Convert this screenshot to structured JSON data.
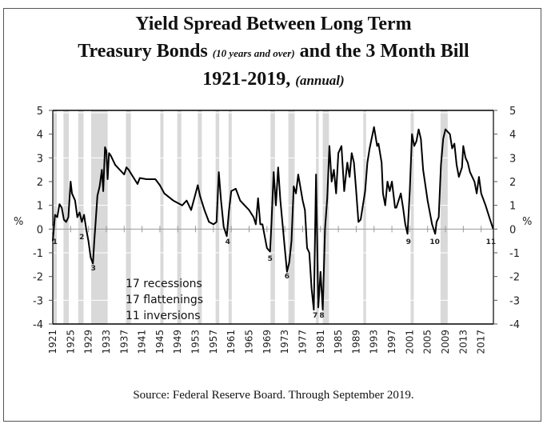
{
  "chart_data": {
    "type": "line",
    "title": {
      "line1": "Yield Spread Between Long Term",
      "line2_main": "Treasury Bonds",
      "line2_note": "(10 years and over)",
      "line2_tail": "and the 3 Month Bill",
      "line3_main": "1921-2019,",
      "line3_note": "(annual)"
    },
    "source": "Source: Federal Reserve Board. Through September 2019.",
    "xlabel": "",
    "ylabel": "%",
    "ylabel_right": "%",
    "xlim": [
      1921,
      2019.75
    ],
    "ylim": [
      -4,
      5
    ],
    "y_ticks": [
      "5",
      "4",
      "3",
      "2",
      "1",
      "0",
      "-1",
      "-2",
      "-3",
      "-4"
    ],
    "y_tick_values": [
      5,
      4,
      3,
      2,
      1,
      0,
      -1,
      -2,
      -3,
      -4
    ],
    "x_ticks": [
      "1921",
      "1925",
      "1929",
      "1933",
      "1937",
      "1941",
      "1945",
      "1949",
      "1953",
      "1957",
      "1961",
      "1965",
      "1969",
      "1973",
      "1977",
      "1981",
      "1985",
      "1989",
      "1993",
      "1997",
      "2001",
      "2005",
      "2009",
      "2013",
      "2017"
    ],
    "x_tick_values": [
      1921,
      1925,
      1929,
      1933,
      1937,
      1941,
      1945,
      1949,
      1953,
      1957,
      1961,
      1965,
      1969,
      1973,
      1977,
      1981,
      1985,
      1989,
      1993,
      1997,
      2001,
      2005,
      2009,
      2013,
      2017
    ],
    "grid": false,
    "recession_color": "#d9d9d9",
    "line_color": "#000000",
    "recessions": [
      [
        1921.0,
        1921.9
      ],
      [
        1923.4,
        1924.6
      ],
      [
        1926.7,
        1927.9
      ],
      [
        1929.6,
        1933.3
      ],
      [
        1937.4,
        1938.5
      ],
      [
        1945.1,
        1945.8
      ],
      [
        1948.9,
        1949.8
      ],
      [
        1953.5,
        1954.4
      ],
      [
        1957.5,
        1958.3
      ],
      [
        1960.4,
        1961.1
      ],
      [
        1969.8,
        1970.8
      ],
      [
        1973.8,
        1975.2
      ],
      [
        1980.0,
        1980.6
      ],
      [
        1981.5,
        1982.9
      ],
      [
        1990.6,
        1991.2
      ],
      [
        2001.2,
        2001.9
      ],
      [
        2007.9,
        2009.5
      ]
    ],
    "annotations": [
      {
        "label": "1",
        "x": 1921.5,
        "y": -0.5
      },
      {
        "label": "2",
        "x": 1927.5,
        "y": -0.3
      },
      {
        "label": "3",
        "x": 1930.1,
        "y": -1.6
      },
      {
        "label": "4",
        "x": 1960.2,
        "y": -0.5
      },
      {
        "label": "5",
        "x": 1969.7,
        "y": -1.2
      },
      {
        "label": "6",
        "x": 1973.5,
        "y": -1.95
      },
      {
        "label": "7",
        "x": 1979.8,
        "y": -3.6
      },
      {
        "label": "8",
        "x": 1981.3,
        "y": -3.6
      },
      {
        "label": "9",
        "x": 2000.7,
        "y": -0.5
      },
      {
        "label": "10",
        "x": 2006.6,
        "y": -0.5
      },
      {
        "label": "11",
        "x": 2019.2,
        "y": -0.5
      }
    ],
    "notes": [
      "17 recessions",
      "17 flattenings",
      "11 inversions"
    ],
    "series": [
      {
        "name": "Yield spread",
        "x": [
          1921,
          1921.5,
          1922,
          1922.5,
          1923,
          1923.5,
          1924,
          1924.5,
          1925,
          1925.3,
          1926,
          1926.5,
          1927,
          1927.5,
          1928,
          1928.5,
          1929,
          1929.5,
          1930,
          1930.3,
          1930.6,
          1931,
          1931.5,
          1932,
          1932.3,
          1932.7,
          1933,
          1933.3,
          1933.6,
          1934,
          1935,
          1936,
          1937,
          1937.5,
          1938,
          1939,
          1940,
          1940.5,
          1942,
          1944,
          1945,
          1946,
          1948,
          1950,
          1951,
          1952,
          1953,
          1953.5,
          1954,
          1955,
          1956,
          1957,
          1957.7,
          1958.2,
          1958.7,
          1959.3,
          1960,
          1960.5,
          1961,
          1962,
          1963,
          1964,
          1965,
          1966,
          1966.5,
          1967,
          1967.5,
          1968,
          1969,
          1969.7,
          1970,
          1970.5,
          1971,
          1971.5,
          1972,
          1973,
          1973.5,
          1974,
          1974.5,
          1975,
          1975.5,
          1976,
          1977,
          1977.5,
          1978,
          1978.5,
          1979,
          1979.5,
          1980,
          1980.5,
          1981,
          1981.5,
          1982,
          1982.5,
          1983,
          1983.5,
          1984,
          1984.5,
          1985,
          1985.7,
          1986.3,
          1987,
          1987.5,
          1988,
          1988.5,
          1989,
          1989.5,
          1990,
          1991,
          1991.5,
          1992,
          1993,
          1993.7,
          1994,
          1994.7,
          1995,
          1995.5,
          1996,
          1996.5,
          1997,
          1997.7,
          1998,
          1999,
          1999.5,
          2000,
          2000.5,
          2001,
          2001.5,
          2002,
          2002.5,
          2003,
          2003.5,
          2004,
          2005,
          2006,
          2006.7,
          2007,
          2007.5,
          2008,
          2008.5,
          2009,
          2010,
          2010.5,
          2011,
          2011.5,
          2012,
          2012.7,
          2013,
          2013.5,
          2014,
          2014.5,
          2015,
          2015.5,
          2016,
          2016.5,
          2017,
          2018,
          2019,
          2019.7
        ],
        "values": [
          -0.5,
          0.6,
          0.5,
          1.05,
          0.9,
          0.4,
          0.3,
          0.5,
          2.0,
          1.5,
          1.2,
          0.5,
          0.7,
          0.3,
          0.6,
          0.0,
          -0.5,
          -1.2,
          -1.45,
          -0.5,
          0.3,
          1.4,
          1.8,
          2.5,
          1.6,
          3.45,
          3.3,
          2.1,
          3.2,
          3.1,
          2.7,
          2.5,
          2.3,
          2.6,
          2.5,
          2.2,
          1.9,
          2.15,
          2.1,
          2.1,
          1.85,
          1.5,
          1.2,
          1.0,
          1.2,
          0.8,
          1.5,
          1.85,
          1.4,
          0.8,
          0.3,
          0.2,
          0.3,
          2.4,
          1.2,
          0.1,
          -0.3,
          0.8,
          1.6,
          1.7,
          1.2,
          1.0,
          0.8,
          0.5,
          0.2,
          1.3,
          0.2,
          0.2,
          -0.8,
          -0.95,
          0.2,
          2.4,
          1.0,
          2.6,
          1.2,
          -0.8,
          -1.8,
          -1.4,
          -0.5,
          1.8,
          1.5,
          2.3,
          1.2,
          0.8,
          -0.8,
          -1.0,
          -2.5,
          -3.4,
          2.3,
          -3.3,
          -1.8,
          -3.4,
          0.0,
          1.3,
          3.5,
          2.0,
          2.5,
          1.5,
          3.2,
          3.5,
          1.6,
          2.8,
          2.2,
          3.2,
          2.8,
          1.6,
          0.3,
          0.4,
          1.6,
          2.8,
          3.4,
          4.3,
          3.5,
          3.6,
          2.8,
          1.5,
          1.0,
          2.0,
          1.6,
          2.0,
          0.9,
          0.9,
          1.5,
          0.9,
          0.2,
          -0.2,
          1.6,
          4.0,
          3.5,
          3.7,
          4.2,
          3.8,
          2.5,
          1.2,
          0.2,
          -0.2,
          0.3,
          0.5,
          2.7,
          3.8,
          4.2,
          4.0,
          3.4,
          3.6,
          2.7,
          2.2,
          2.6,
          3.5,
          3.0,
          2.8,
          2.4,
          2.2,
          2.0,
          1.5,
          2.2,
          1.5,
          1.0,
          0.4,
          0.0
        ]
      }
    ]
  }
}
